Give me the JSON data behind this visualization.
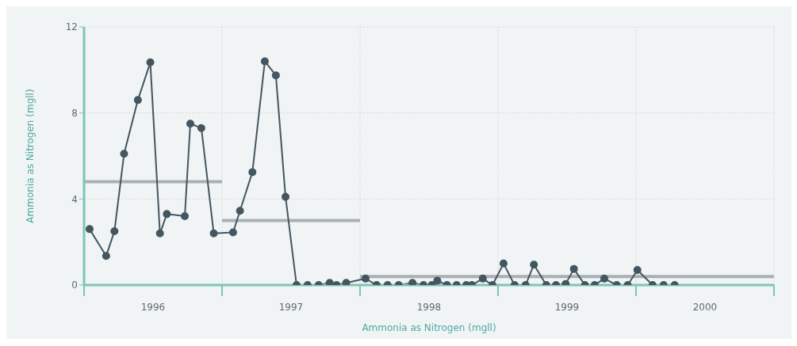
{
  "chart_data": {
    "type": "line",
    "xlabel": "Ammonia as Nitrogen (mgll)",
    "ylabel": "Ammonia as Nitrogen (mgll)",
    "xlim": [
      1996,
      2001
    ],
    "xticks": [
      {
        "value": 1996,
        "label": null
      },
      {
        "value": 1996.5,
        "label": "1996"
      },
      {
        "value": 1997,
        "label": null
      },
      {
        "value": 1997.5,
        "label": "1997"
      },
      {
        "value": 1998,
        "label": null
      },
      {
        "value": 1998.5,
        "label": "1998"
      },
      {
        "value": 1999,
        "label": null
      },
      {
        "value": 1999.5,
        "label": "1999"
      },
      {
        "value": 2000,
        "label": null
      },
      {
        "value": 2000.5,
        "label": "2000"
      },
      {
        "value": 2001,
        "label": null
      }
    ],
    "ylim": [
      0,
      12
    ],
    "yticks": [
      0,
      4,
      8,
      12
    ],
    "grid": true,
    "marker": "circle",
    "line_style": "solid",
    "series": [
      {
        "color": "#a9b0b3",
        "marker": "none",
        "x": [
          1996,
          1997
        ],
        "values": [
          4.8,
          4.8
        ]
      },
      {
        "color": "#a9b0b3",
        "marker": "none",
        "x": [
          1997,
          1998
        ],
        "values": [
          3.0,
          3.0
        ]
      },
      {
        "color": "#a9b0b3",
        "marker": "none",
        "x": [
          1998,
          2001
        ],
        "values": [
          0.4,
          0.4
        ]
      },
      {
        "color": "#44565f",
        "x": [
          1996.04,
          1996.16,
          1996.22,
          1996.29,
          1996.39,
          1996.48,
          1996.55,
          1996.6,
          1996.73,
          1996.77,
          1996.85,
          1996.94,
          1997.08,
          1997.13,
          1997.22,
          1997.31,
          1997.39,
          1997.46,
          1997.54,
          1997.62,
          1997.7,
          1997.78,
          1997.83,
          1997.9,
          1998.04,
          1998.12,
          1998.2,
          1998.28,
          1998.38,
          1998.46,
          1998.52,
          1998.56,
          1998.63,
          1998.7,
          1998.77,
          1998.81,
          1998.89,
          1998.96,
          1999.04,
          1999.12,
          1999.2,
          1999.26,
          1999.35,
          1999.42,
          1999.49,
          1999.55,
          1999.63,
          1999.7,
          1999.77,
          1999.86,
          1999.94,
          2000.01,
          2000.12,
          2000.2,
          2000.28
        ],
        "values": [
          2.6,
          1.35,
          2.5,
          6.1,
          8.6,
          10.35,
          2.4,
          3.3,
          3.2,
          7.5,
          7.3,
          2.4,
          2.45,
          3.45,
          5.25,
          10.4,
          9.75,
          4.1,
          0,
          0,
          0,
          0.1,
          0,
          0.1,
          0.3,
          0,
          0,
          0,
          0.1,
          0,
          0,
          0.2,
          0,
          0,
          0,
          0,
          0.3,
          0,
          1.0,
          0,
          0,
          0.95,
          0,
          0,
          0.05,
          0.75,
          0,
          0,
          0.3,
          0,
          0,
          0.7,
          0,
          0,
          0
        ]
      }
    ]
  }
}
